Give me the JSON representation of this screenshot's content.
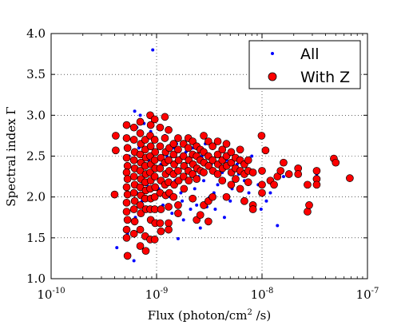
{
  "chart_data": {
    "type": "scatter",
    "xlabel": "Flux (photon/cm",
    "xlabel_sup": "2",
    "xlabel_end": " /s)",
    "ylabel": "Spectral index Γ",
    "xscale": "log",
    "xlim": [
      1e-10,
      1e-07
    ],
    "ylim": [
      1.0,
      4.0
    ],
    "grid": true,
    "legend_position": "top-right",
    "x_ticks": [
      {
        "value": 1e-10,
        "base": "10",
        "exp": "-10"
      },
      {
        "value": 1e-09,
        "base": "10",
        "exp": "-9"
      },
      {
        "value": 1e-08,
        "base": "10",
        "exp": "-8"
      },
      {
        "value": 1e-07,
        "base": "10",
        "exp": "-7"
      }
    ],
    "y_ticks": [
      "1.0",
      "1.5",
      "2.0",
      "2.5",
      "3.0",
      "3.5",
      "4.0"
    ],
    "series": [
      {
        "name": "All",
        "color": "#0000ff",
        "marker": "small-dot",
        "points": [
          [
            4.2e-10,
            1.38
          ],
          [
            6.1e-10,
            1.22
          ],
          [
            9.2e-10,
            3.8
          ],
          [
            6.2e-10,
            3.05
          ],
          [
            7e-10,
            3.0
          ],
          [
            7.6e-10,
            2.9
          ],
          [
            1e-09,
            2.7
          ],
          [
            1.3e-09,
            2.6
          ],
          [
            1.6e-09,
            1.49
          ],
          [
            1.8e-09,
            1.72
          ],
          [
            2.1e-09,
            1.85
          ],
          [
            2.6e-09,
            1.62
          ],
          [
            3e-09,
            1.88
          ],
          [
            3.5e-09,
            2.05
          ],
          [
            4.4e-09,
            1.75
          ],
          [
            4.8e-09,
            2.0
          ],
          [
            6e-09,
            2.28
          ],
          [
            7.5e-09,
            2.05
          ],
          [
            9.8e-09,
            1.85
          ],
          [
            1.1e-08,
            1.95
          ],
          [
            1.4e-08,
            1.65
          ],
          [
            1.6e-08,
            2.25
          ],
          [
            2.7e-08,
            1.9
          ],
          [
            3.3e-08,
            2.28
          ],
          [
            6.5e-10,
            2.05
          ],
          [
            7.3e-10,
            1.95
          ],
          [
            8.1e-10,
            2.15
          ],
          [
            9e-10,
            2.0
          ],
          [
            1.05e-09,
            2.1
          ],
          [
            1.2e-09,
            2.3
          ],
          [
            1.35e-09,
            2.0
          ],
          [
            1.5e-09,
            2.2
          ],
          [
            1.7e-09,
            2.05
          ],
          [
            2e-09,
            2.35
          ],
          [
            2.3e-09,
            2.1
          ],
          [
            2.5e-09,
            2.25
          ],
          [
            2.8e-09,
            2.2
          ],
          [
            3.2e-09,
            2.0
          ],
          [
            3.8e-09,
            2.15
          ],
          [
            4.2e-09,
            2.3
          ],
          [
            5.2e-09,
            2.1
          ],
          [
            5.8e-09,
            2.4
          ],
          [
            6.8e-09,
            2.2
          ],
          [
            8.5e-09,
            2.3
          ],
          [
            9.2e-09,
            2.15
          ],
          [
            1.2e-08,
            2.05
          ],
          [
            5.5e-10,
            2.5
          ],
          [
            6.8e-10,
            2.6
          ],
          [
            8.4e-10,
            2.45
          ],
          [
            9.6e-10,
            2.55
          ],
          [
            1.1e-09,
            2.4
          ],
          [
            1.25e-09,
            2.5
          ],
          [
            1.45e-09,
            2.6
          ],
          [
            1.65e-09,
            2.45
          ],
          [
            1.9e-09,
            2.55
          ],
          [
            2.2e-09,
            2.6
          ],
          [
            2.7e-09,
            2.5
          ],
          [
            3.3e-09,
            2.4
          ],
          [
            4e-09,
            2.55
          ],
          [
            4.6e-09,
            2.45
          ],
          [
            5.5e-09,
            2.5
          ],
          [
            7e-09,
            2.4
          ],
          [
            8e-09,
            2.5
          ],
          [
            6.3e-10,
            1.75
          ],
          [
            7.8e-10,
            1.85
          ],
          [
            9.4e-10,
            1.7
          ],
          [
            1.15e-09,
            1.9
          ],
          [
            1.4e-09,
            1.8
          ],
          [
            1.75e-09,
            1.95
          ],
          [
            2.4e-09,
            1.9
          ],
          [
            3.6e-09,
            1.85
          ],
          [
            5e-09,
            1.95
          ],
          [
            6.5e-10,
            2.85
          ],
          [
            8.8e-10,
            2.8
          ],
          [
            1.2e-09,
            2.75
          ],
          [
            1.55e-09,
            2.65
          ],
          [
            2.05e-09,
            2.7
          ],
          [
            2.9e-09,
            2.65
          ],
          [
            3.9e-09,
            2.7
          ],
          [
            5.3e-10,
            1.55
          ],
          [
            7.1e-10,
            1.6
          ],
          [
            8.6e-10,
            1.5
          ]
        ]
      },
      {
        "name": "With Z",
        "color": "#ff0000",
        "marker": "circle",
        "points": [
          [
            4.1e-10,
            2.75
          ],
          [
            4.1e-10,
            2.57
          ],
          [
            4e-10,
            2.03
          ],
          [
            5.2e-10,
            2.88
          ],
          [
            5.2e-10,
            2.72
          ],
          [
            5.3e-10,
            2.6
          ],
          [
            5.2e-10,
            2.48
          ],
          [
            5.3e-10,
            2.38
          ],
          [
            5.2e-10,
            2.3
          ],
          [
            5.3e-10,
            2.22
          ],
          [
            5.2e-10,
            2.12
          ],
          [
            5.3e-10,
            2.03
          ],
          [
            5.2e-10,
            1.93
          ],
          [
            5.2e-10,
            1.82
          ],
          [
            5.3e-10,
            1.72
          ],
          [
            5.2e-10,
            1.6
          ],
          [
            5.2e-10,
            1.5
          ],
          [
            5.3e-10,
            1.28
          ],
          [
            6.1e-10,
            2.85
          ],
          [
            6.1e-10,
            2.7
          ],
          [
            6.2e-10,
            2.55
          ],
          [
            6.1e-10,
            2.45
          ],
          [
            6.2e-10,
            2.35
          ],
          [
            6.1e-10,
            2.25
          ],
          [
            6.2e-10,
            2.15
          ],
          [
            6.1e-10,
            2.05
          ],
          [
            6.2e-10,
            1.95
          ],
          [
            6.1e-10,
            1.85
          ],
          [
            6.2e-10,
            1.7
          ],
          [
            6.1e-10,
            1.55
          ],
          [
            7e-10,
            2.92
          ],
          [
            7e-10,
            2.78
          ],
          [
            7.1e-10,
            2.65
          ],
          [
            7e-10,
            2.52
          ],
          [
            7.1e-10,
            2.42
          ],
          [
            7e-10,
            2.32
          ],
          [
            7.1e-10,
            2.22
          ],
          [
            7e-10,
            2.12
          ],
          [
            7.1e-10,
            2.02
          ],
          [
            7e-10,
            1.9
          ],
          [
            7.1e-10,
            1.8
          ],
          [
            7e-10,
            1.6
          ],
          [
            7e-10,
            1.4
          ],
          [
            7.8e-10,
            2.7
          ],
          [
            7.8e-10,
            2.58
          ],
          [
            7.9e-10,
            2.48
          ],
          [
            7.8e-10,
            2.38
          ],
          [
            7.9e-10,
            2.28
          ],
          [
            7.8e-10,
            2.18
          ],
          [
            7.9e-10,
            2.08
          ],
          [
            7.8e-10,
            1.98
          ],
          [
            7.9e-10,
            1.85
          ],
          [
            7.8e-10,
            1.52
          ],
          [
            7.9e-10,
            1.34
          ],
          [
            8.7e-10,
            3.0
          ],
          [
            8.8e-10,
            2.88
          ],
          [
            8.7e-10,
            2.75
          ],
          [
            8.8e-10,
            2.62
          ],
          [
            8.7e-10,
            2.5
          ],
          [
            8.8e-10,
            2.4
          ],
          [
            8.7e-10,
            2.3
          ],
          [
            8.8e-10,
            2.2
          ],
          [
            8.7e-10,
            2.1
          ],
          [
            8.8e-10,
            1.98
          ],
          [
            8.7e-10,
            1.85
          ],
          [
            8.8e-10,
            1.72
          ],
          [
            8.7e-10,
            1.48
          ],
          [
            9.6e-10,
            2.95
          ],
          [
            9.6e-10,
            2.7
          ],
          [
            9.7e-10,
            2.55
          ],
          [
            9.6e-10,
            2.45
          ],
          [
            9.7e-10,
            2.35
          ],
          [
            9.6e-10,
            2.25
          ],
          [
            9.7e-10,
            2.12
          ],
          [
            9.6e-10,
            2.0
          ],
          [
            9.6e-10,
            1.85
          ],
          [
            9.7e-10,
            1.68
          ],
          [
            9.6e-10,
            1.48
          ],
          [
            1.08e-09,
            2.85
          ],
          [
            1.08e-09,
            2.62
          ],
          [
            1.1e-09,
            2.48
          ],
          [
            1.08e-09,
            2.35
          ],
          [
            1.1e-09,
            2.2
          ],
          [
            1.08e-09,
            2.05
          ],
          [
            1.1e-09,
            1.85
          ],
          [
            1.08e-09,
            1.68
          ],
          [
            1.1e-09,
            1.58
          ],
          [
            1.2e-09,
            2.98
          ],
          [
            1.2e-09,
            2.72
          ],
          [
            1.22e-09,
            2.55
          ],
          [
            1.2e-09,
            2.42
          ],
          [
            1.22e-09,
            2.28
          ],
          [
            1.2e-09,
            2.15
          ],
          [
            1.22e-09,
            2.02
          ],
          [
            1.3e-09,
            2.82
          ],
          [
            1.32e-09,
            2.6
          ],
          [
            1.3e-09,
            2.45
          ],
          [
            1.32e-09,
            2.32
          ],
          [
            1.3e-09,
            2.18
          ],
          [
            1.32e-09,
            2.05
          ],
          [
            1.3e-09,
            1.88
          ],
          [
            1.3e-09,
            1.68
          ],
          [
            1.3e-09,
            1.6
          ],
          [
            1.45e-09,
            2.65
          ],
          [
            1.45e-09,
            2.52
          ],
          [
            1.47e-09,
            2.4
          ],
          [
            1.45e-09,
            2.28
          ],
          [
            1.47e-09,
            2.15
          ],
          [
            1.45e-09,
            2.0
          ],
          [
            1.6e-09,
            2.72
          ],
          [
            1.6e-09,
            2.58
          ],
          [
            1.62e-09,
            2.45
          ],
          [
            1.6e-09,
            2.32
          ],
          [
            1.62e-09,
            2.2
          ],
          [
            1.6e-09,
            1.9
          ],
          [
            1.6e-09,
            1.8
          ],
          [
            1.8e-09,
            2.65
          ],
          [
            1.8e-09,
            2.5
          ],
          [
            1.82e-09,
            2.38
          ],
          [
            1.8e-09,
            2.25
          ],
          [
            1.82e-09,
            2.1
          ],
          [
            2e-09,
            2.72
          ],
          [
            2e-09,
            2.6
          ],
          [
            2.02e-09,
            2.45
          ],
          [
            2e-09,
            2.32
          ],
          [
            2.02e-09,
            2.2
          ],
          [
            2.2e-09,
            2.68
          ],
          [
            2.2e-09,
            2.52
          ],
          [
            2.22e-09,
            2.4
          ],
          [
            2.2e-09,
            2.28
          ],
          [
            2.2e-09,
            1.98
          ],
          [
            2.4e-09,
            2.62
          ],
          [
            2.4e-09,
            2.5
          ],
          [
            2.42e-09,
            2.35
          ],
          [
            2.4e-09,
            2.22
          ],
          [
            2.4e-09,
            1.72
          ],
          [
            2.6e-09,
            2.58
          ],
          [
            2.6e-09,
            2.45
          ],
          [
            2.62e-09,
            2.32
          ],
          [
            2.6e-09,
            1.78
          ],
          [
            2.8e-09,
            2.75
          ],
          [
            2.8e-09,
            2.55
          ],
          [
            2.82e-09,
            2.42
          ],
          [
            2.8e-09,
            2.3
          ],
          [
            2.8e-09,
            1.9
          ],
          [
            3.1e-09,
            2.68
          ],
          [
            3.1e-09,
            2.5
          ],
          [
            3.12e-09,
            2.38
          ],
          [
            3.1e-09,
            1.7
          ],
          [
            3.1e-09,
            1.95
          ],
          [
            3.4e-09,
            2.62
          ],
          [
            3.4e-09,
            2.45
          ],
          [
            3.42e-09,
            2.32
          ],
          [
            3.4e-09,
            2.0
          ],
          [
            3.8e-09,
            2.68
          ],
          [
            3.8e-09,
            2.52
          ],
          [
            3.82e-09,
            2.4
          ],
          [
            3.8e-09,
            2.28
          ],
          [
            4.2e-09,
            2.58
          ],
          [
            4.2e-09,
            2.45
          ],
          [
            4.22e-09,
            2.35
          ],
          [
            4.2e-09,
            2.2
          ],
          [
            4.6e-09,
            2.65
          ],
          [
            4.6e-09,
            2.5
          ],
          [
            4.62e-09,
            2.38
          ],
          [
            4.6e-09,
            2.0
          ],
          [
            5.1e-09,
            2.55
          ],
          [
            5.1e-09,
            2.42
          ],
          [
            5.12e-09,
            2.3
          ],
          [
            5.1e-09,
            2.15
          ],
          [
            5.6e-09,
            2.48
          ],
          [
            5.6e-09,
            2.35
          ],
          [
            5.62e-09,
            2.22
          ],
          [
            6.2e-09,
            2.58
          ],
          [
            6.2e-09,
            2.45
          ],
          [
            6.22e-09,
            2.32
          ],
          [
            6.2e-09,
            2.1
          ],
          [
            6.8e-09,
            2.4
          ],
          [
            6.8e-09,
            2.28
          ],
          [
            6.8e-09,
            1.95
          ],
          [
            7.4e-09,
            2.45
          ],
          [
            7.4e-09,
            2.32
          ],
          [
            7.4e-09,
            2.18
          ],
          [
            8.2e-09,
            2.3
          ],
          [
            8.2e-09,
            1.9
          ],
          [
            8.2e-09,
            1.85
          ],
          [
            9.9e-09,
            2.75
          ],
          [
            1e-08,
            2.32
          ],
          [
            1e-08,
            2.15
          ],
          [
            1e-08,
            2.05
          ],
          [
            1.08e-08,
            2.57
          ],
          [
            1.2e-08,
            2.2
          ],
          [
            1.3e-08,
            2.15
          ],
          [
            1.4e-08,
            2.25
          ],
          [
            1.5e-08,
            2.32
          ],
          [
            1.6e-08,
            2.42
          ],
          [
            1.8e-08,
            2.28
          ],
          [
            2.2e-08,
            2.35
          ],
          [
            2.2e-08,
            2.28
          ],
          [
            2.7e-08,
            2.15
          ],
          [
            2.7e-08,
            1.82
          ],
          [
            2.8e-08,
            1.9
          ],
          [
            3.3e-08,
            2.32
          ],
          [
            3.3e-08,
            2.22
          ],
          [
            3.3e-08,
            2.15
          ],
          [
            4.8e-08,
            2.47
          ],
          [
            5e-08,
            2.42
          ],
          [
            6.8e-08,
            2.23
          ]
        ]
      }
    ]
  }
}
